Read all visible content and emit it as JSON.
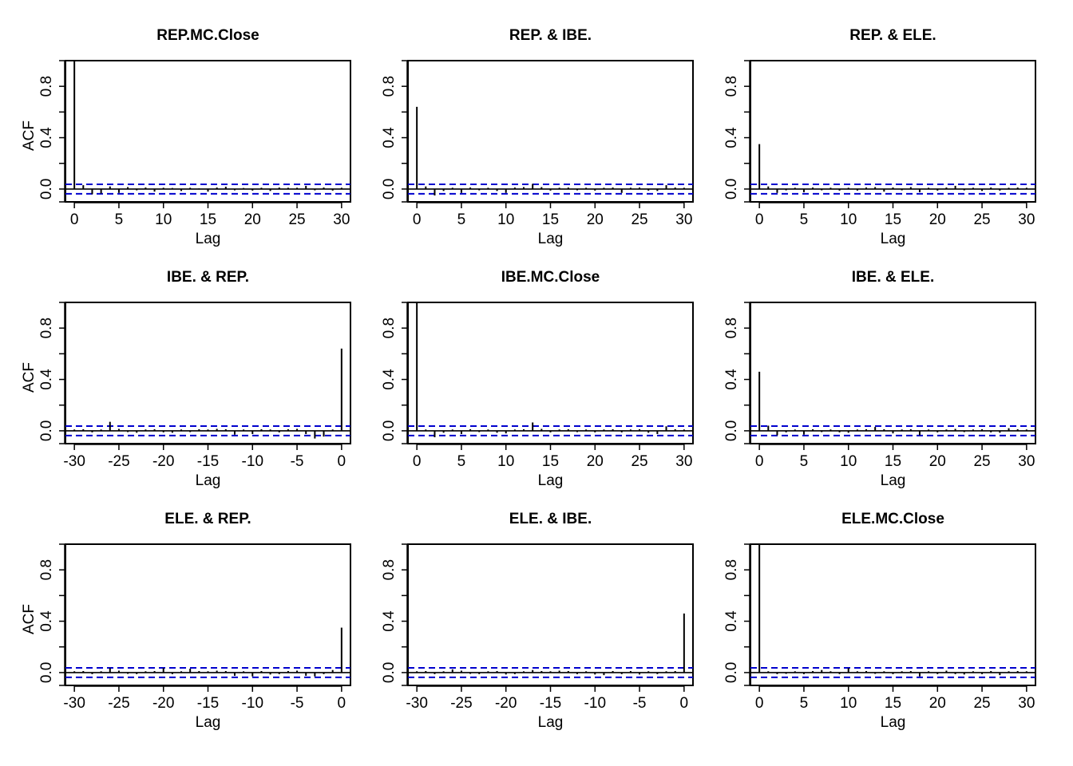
{
  "figure": {
    "style": {
      "bar_color": "#000000",
      "ci_color": "#0000CD",
      "axis_color": "#000000",
      "background": "#ffffff"
    }
  },
  "chart_data": [
    {
      "type": "bar",
      "title": "REP.MC.Close",
      "xlabel": "Lag",
      "ylabel": "ACF",
      "xlim": [
        -1,
        31
      ],
      "ylim": [
        -0.1,
        1.0
      ],
      "xticks": [
        0,
        5,
        10,
        15,
        20,
        25,
        30
      ],
      "yticks": [
        0.0,
        0.4,
        0.8
      ],
      "ci": 0.037,
      "x": [
        0,
        1,
        2,
        3,
        4,
        5,
        6,
        7,
        8,
        9,
        10,
        11,
        12,
        13,
        14,
        15,
        16,
        17,
        18,
        19,
        20,
        21,
        22,
        23,
        24,
        25,
        26,
        27,
        28,
        29,
        30
      ],
      "values": [
        1.0,
        0.03,
        -0.04,
        -0.035,
        0.02,
        -0.03,
        0.015,
        -0.01,
        0.012,
        -0.02,
        0.01,
        0.008,
        -0.015,
        0.01,
        0.005,
        -0.02,
        0.012,
        0.018,
        -0.01,
        0.008,
        -0.012,
        0.01,
        -0.015,
        0.012,
        0.01,
        0.01,
        0.025,
        -0.01,
        0.012,
        -0.012,
        0.01
      ]
    },
    {
      "type": "bar",
      "title": "REP. & IBE.",
      "xlabel": "Lag",
      "ylabel": "",
      "xlim": [
        -1,
        31
      ],
      "ylim": [
        -0.1,
        1.0
      ],
      "xticks": [
        0,
        5,
        10,
        15,
        20,
        25,
        30
      ],
      "yticks": [
        0.0,
        0.4,
        0.8
      ],
      "ci": 0.037,
      "x": [
        0,
        1,
        2,
        3,
        4,
        5,
        6,
        7,
        8,
        9,
        10,
        11,
        12,
        13,
        14,
        15,
        16,
        17,
        18,
        19,
        20,
        21,
        22,
        23,
        24,
        25,
        26,
        27,
        28,
        29,
        30
      ],
      "values": [
        0.64,
        0.02,
        -0.05,
        -0.015,
        0.01,
        -0.03,
        0.012,
        -0.01,
        0.01,
        -0.015,
        -0.03,
        0.012,
        0.015,
        0.04,
        0.015,
        -0.012,
        0.01,
        0.012,
        -0.01,
        0.01,
        -0.012,
        0.01,
        0.012,
        -0.03,
        0.01,
        0.012,
        -0.012,
        -0.015,
        0.03,
        0.012,
        0.01
      ]
    },
    {
      "type": "bar",
      "title": "REP. & ELE.",
      "xlabel": "Lag",
      "ylabel": "",
      "xlim": [
        -1,
        31
      ],
      "ylim": [
        -0.1,
        1.0
      ],
      "xticks": [
        0,
        5,
        10,
        15,
        20,
        25,
        30
      ],
      "yticks": [
        0.0,
        0.4,
        0.8
      ],
      "ci": 0.037,
      "x": [
        0,
        1,
        2,
        3,
        4,
        5,
        6,
        7,
        8,
        9,
        10,
        11,
        12,
        13,
        14,
        15,
        16,
        17,
        18,
        19,
        20,
        21,
        22,
        23,
        24,
        25,
        26,
        27,
        28,
        29,
        30
      ],
      "values": [
        0.35,
        0.02,
        -0.03,
        -0.01,
        0.01,
        -0.025,
        0.012,
        -0.01,
        0.01,
        -0.012,
        0.01,
        -0.012,
        0.012,
        0.015,
        -0.02,
        0.012,
        -0.01,
        0.015,
        -0.025,
        0.01,
        -0.012,
        0.012,
        0.025,
        -0.01,
        0.01,
        -0.015,
        0.012,
        -0.012,
        0.01,
        0.012,
        0.01
      ]
    },
    {
      "type": "bar",
      "title": "IBE. & REP.",
      "xlabel": "Lag",
      "ylabel": "ACF",
      "xlim": [
        -31,
        1
      ],
      "ylim": [
        -0.1,
        1.0
      ],
      "xticks": [
        -30,
        -25,
        -20,
        -15,
        -10,
        -5,
        0
      ],
      "yticks": [
        0.0,
        0.4,
        0.8
      ],
      "ci": 0.037,
      "x": [
        -30,
        -29,
        -28,
        -27,
        -26,
        -25,
        -24,
        -23,
        -22,
        -21,
        -20,
        -19,
        -18,
        -17,
        -16,
        -15,
        -14,
        -13,
        -12,
        -11,
        -10,
        -9,
        -8,
        -7,
        -6,
        -5,
        -4,
        -3,
        -2,
        -1,
        0
      ],
      "values": [
        0.01,
        0.012,
        -0.012,
        0.01,
        0.07,
        0.015,
        -0.01,
        -0.015,
        0.01,
        0.012,
        -0.012,
        -0.015,
        0.01,
        -0.01,
        0.012,
        0.01,
        0.015,
        0.012,
        -0.03,
        0.01,
        -0.025,
        0.012,
        0.01,
        -0.012,
        0.012,
        0.015,
        -0.025,
        -0.06,
        -0.045,
        0.01,
        0.64
      ]
    },
    {
      "type": "bar",
      "title": "IBE.MC.Close",
      "xlabel": "Lag",
      "ylabel": "",
      "xlim": [
        -1,
        31
      ],
      "ylim": [
        -0.1,
        1.0
      ],
      "xticks": [
        0,
        5,
        10,
        15,
        20,
        25,
        30
      ],
      "yticks": [
        0.0,
        0.4,
        0.8
      ],
      "ci": 0.037,
      "x": [
        0,
        1,
        2,
        3,
        4,
        5,
        6,
        7,
        8,
        9,
        10,
        11,
        12,
        13,
        14,
        15,
        16,
        17,
        18,
        19,
        20,
        21,
        22,
        23,
        24,
        25,
        26,
        27,
        28,
        29,
        30
      ],
      "values": [
        1.0,
        0.01,
        -0.05,
        -0.015,
        0.01,
        -0.025,
        0.012,
        -0.01,
        0.01,
        -0.015,
        -0.02,
        0.01,
        0.012,
        0.065,
        0.015,
        -0.012,
        0.01,
        0.012,
        -0.01,
        0.01,
        -0.012,
        0.01,
        0.012,
        -0.012,
        0.01,
        0.012,
        -0.015,
        -0.025,
        0.035,
        0.012,
        0.01
      ]
    },
    {
      "type": "bar",
      "title": "IBE. & ELE.",
      "xlabel": "Lag",
      "ylabel": "",
      "xlim": [
        -1,
        31
      ],
      "ylim": [
        -0.1,
        1.0
      ],
      "xticks": [
        0,
        5,
        10,
        15,
        20,
        25,
        30
      ],
      "yticks": [
        0.0,
        0.4,
        0.8
      ],
      "ci": 0.037,
      "x": [
        0,
        1,
        2,
        3,
        4,
        5,
        6,
        7,
        8,
        9,
        10,
        11,
        12,
        13,
        14,
        15,
        16,
        17,
        18,
        19,
        20,
        21,
        22,
        23,
        24,
        25,
        26,
        27,
        28,
        29,
        30
      ],
      "values": [
        0.46,
        0.04,
        -0.035,
        -0.012,
        0.01,
        -0.03,
        0.012,
        -0.01,
        0.01,
        -0.012,
        -0.015,
        0.01,
        0.012,
        0.03,
        0.012,
        -0.02,
        0.01,
        0.012,
        -0.035,
        0.01,
        -0.012,
        0.01,
        0.015,
        -0.01,
        0.01,
        0.012,
        -0.012,
        -0.015,
        0.02,
        0.012,
        0.01
      ]
    },
    {
      "type": "bar",
      "title": "ELE. & REP.",
      "xlabel": "Lag",
      "ylabel": "ACF",
      "xlim": [
        -31,
        1
      ],
      "ylim": [
        -0.1,
        1.0
      ],
      "xticks": [
        -30,
        -25,
        -20,
        -15,
        -10,
        -5,
        0
      ],
      "yticks": [
        0.0,
        0.4,
        0.8
      ],
      "ci": 0.037,
      "x": [
        -30,
        -29,
        -28,
        -27,
        -26,
        -25,
        -24,
        -23,
        -22,
        -21,
        -20,
        -19,
        -18,
        -17,
        -16,
        -15,
        -14,
        -13,
        -12,
        -11,
        -10,
        -9,
        -8,
        -7,
        -6,
        -5,
        -4,
        -3,
        -2,
        -1,
        0
      ],
      "values": [
        0.01,
        0.012,
        -0.012,
        0.01,
        0.035,
        0.015,
        -0.01,
        -0.012,
        0.01,
        0.012,
        0.035,
        -0.012,
        0.01,
        0.03,
        0.012,
        0.01,
        0.015,
        0.012,
        -0.025,
        0.01,
        -0.03,
        0.012,
        -0.015,
        -0.012,
        0.012,
        0.015,
        -0.025,
        -0.03,
        -0.012,
        0.02,
        0.35
      ]
    },
    {
      "type": "bar",
      "title": "ELE. & IBE.",
      "xlabel": "Lag",
      "ylabel": "",
      "xlim": [
        -31,
        1
      ],
      "ylim": [
        -0.1,
        1.0
      ],
      "xticks": [
        -30,
        -25,
        -20,
        -15,
        -10,
        -5,
        0
      ],
      "yticks": [
        0.0,
        0.4,
        0.8
      ],
      "ci": 0.037,
      "x": [
        -30,
        -29,
        -28,
        -27,
        -26,
        -25,
        -24,
        -23,
        -22,
        -21,
        -20,
        -19,
        -18,
        -17,
        -16,
        -15,
        -14,
        -13,
        -12,
        -11,
        -10,
        -9,
        -8,
        -7,
        -6,
        -5,
        -4,
        -3,
        -2,
        -1,
        0
      ],
      "values": [
        0.01,
        0.012,
        -0.012,
        0.01,
        0.025,
        0.015,
        -0.01,
        -0.012,
        0.01,
        0.012,
        -0.015,
        -0.012,
        0.01,
        0.02,
        0.012,
        0.01,
        0.015,
        0.012,
        -0.012,
        0.01,
        -0.015,
        -0.02,
        0.012,
        -0.012,
        0.012,
        -0.015,
        0.01,
        -0.012,
        0.01,
        0.012,
        0.46
      ]
    },
    {
      "type": "bar",
      "title": "ELE.MC.Close",
      "xlabel": "Lag",
      "ylabel": "",
      "xlim": [
        -1,
        31
      ],
      "ylim": [
        -0.1,
        1.0
      ],
      "xticks": [
        0,
        5,
        10,
        15,
        20,
        25,
        30
      ],
      "yticks": [
        0.0,
        0.4,
        0.8
      ],
      "ci": 0.037,
      "x": [
        0,
        1,
        2,
        3,
        4,
        5,
        6,
        7,
        8,
        9,
        10,
        11,
        12,
        13,
        14,
        15,
        16,
        17,
        18,
        19,
        20,
        21,
        22,
        23,
        24,
        25,
        26,
        27,
        28,
        29,
        30
      ],
      "values": [
        1.0,
        0.01,
        -0.012,
        -0.01,
        0.01,
        -0.012,
        0.012,
        0.02,
        0.01,
        -0.012,
        0.035,
        0.01,
        0.012,
        -0.01,
        0.01,
        -0.012,
        0.01,
        0.012,
        -0.03,
        0.01,
        -0.012,
        0.015,
        -0.012,
        -0.015,
        0.01,
        -0.012,
        0.012,
        -0.02,
        0.01,
        0.012,
        0.01
      ]
    }
  ]
}
